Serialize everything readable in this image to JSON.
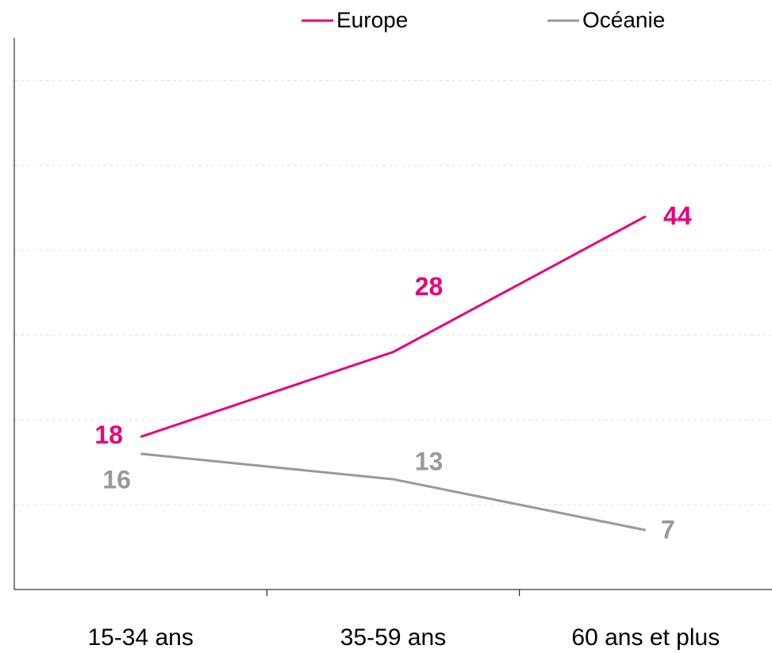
{
  "chart_data": {
    "type": "line",
    "categories": [
      "15-34 ans",
      "35-59 ans",
      "60 ans et plus"
    ],
    "series": [
      {
        "name": "Europe",
        "color": "#e6007e",
        "values": [
          18,
          28,
          44
        ]
      },
      {
        "name": "Océanie",
        "color": "#999999",
        "values": [
          16,
          13,
          7
        ]
      }
    ],
    "ylim": [
      0,
      65
    ],
    "yticks": [
      0,
      10,
      20,
      30,
      40,
      50,
      60
    ],
    "grid": true
  }
}
